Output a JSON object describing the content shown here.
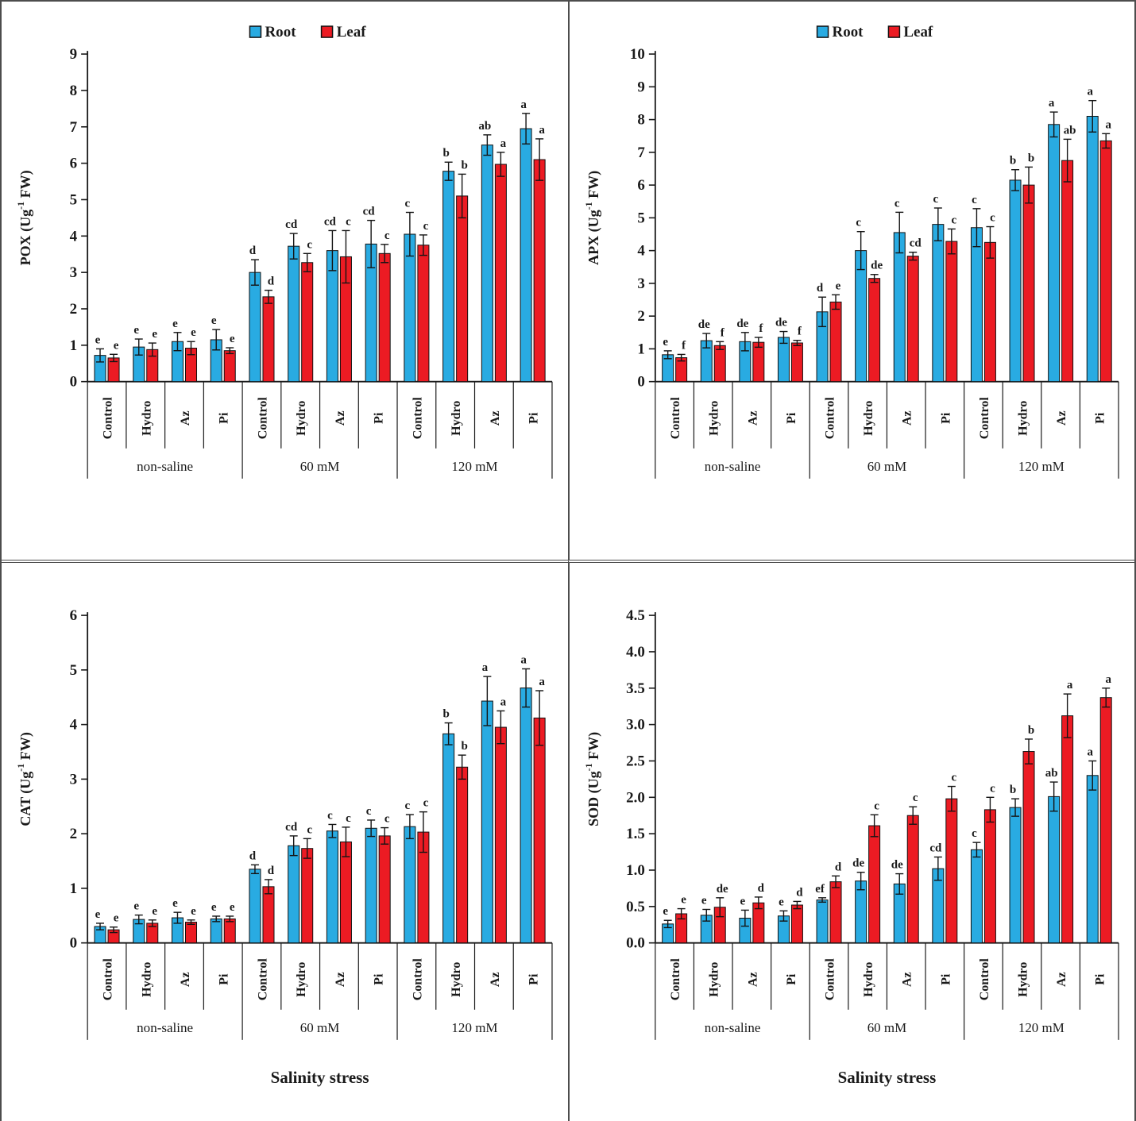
{
  "figure": {
    "description": "Four-panel bar chart figure of antioxidant enzyme activities under salinity stress",
    "border_color": "#4d4d4d"
  },
  "legend": {
    "items": [
      {
        "label": "Root",
        "color": "#29ABE2"
      },
      {
        "label": "Leaf",
        "color": "#EC1B23"
      }
    ]
  },
  "axis": {
    "treatments": [
      "Control",
      "Hydro",
      "Az",
      "Pi"
    ],
    "groups": [
      "non-saline",
      "60 mM",
      "120 mM"
    ],
    "xlabel": "Salinity stress"
  },
  "colors": {
    "root_bar": "#29ABE2",
    "leaf_bar": "#EC1B23",
    "bar_outline": "#111111",
    "error_bar": "#141414",
    "text": "#1a1a1a"
  },
  "chart_data": [
    {
      "type": "bar",
      "id": "pox",
      "position": "top-left",
      "ylabel": {
        "pre": "POX (Ug",
        "sup": "-1",
        "post": " FW)"
      },
      "ylim": [
        0,
        9
      ],
      "ystep": 1,
      "ydecimals": 0,
      "show_legend": true,
      "xlabel": "",
      "groups": [
        "non-saline",
        "60 mM",
        "120 mM"
      ],
      "treatments": [
        "Control",
        "Hydro",
        "Az",
        "Pi"
      ],
      "series": [
        {
          "name": "Root",
          "color": "#29ABE2",
          "values": [
            0.72,
            0.95,
            1.1,
            1.15,
            3.0,
            3.72,
            3.6,
            3.78,
            4.05,
            5.78,
            6.5,
            6.95
          ],
          "errors": [
            0.18,
            0.22,
            0.25,
            0.28,
            0.35,
            0.35,
            0.55,
            0.65,
            0.6,
            0.25,
            0.28,
            0.42
          ],
          "letters": [
            "e",
            "e",
            "e",
            "e",
            "d",
            "cd",
            "cd",
            "cd",
            "c",
            "b",
            "ab",
            "a"
          ]
        },
        {
          "name": "Leaf",
          "color": "#EC1B23",
          "values": [
            0.65,
            0.88,
            0.92,
            0.85,
            2.33,
            3.27,
            3.43,
            3.52,
            3.75,
            5.1,
            5.97,
            6.1
          ],
          "errors": [
            0.1,
            0.18,
            0.18,
            0.08,
            0.18,
            0.25,
            0.72,
            0.25,
            0.28,
            0.6,
            0.33,
            0.57
          ],
          "letters": [
            "e",
            "e",
            "e",
            "e",
            "d",
            "c",
            "c",
            "c",
            "c",
            "b",
            "a",
            "a"
          ]
        }
      ]
    },
    {
      "type": "bar",
      "id": "apx",
      "position": "top-right",
      "ylabel": {
        "pre": "APX (Ug",
        "sup": "-1",
        "post": " FW)"
      },
      "ylim": [
        0,
        10
      ],
      "ystep": 1,
      "ydecimals": 0,
      "show_legend": true,
      "xlabel": "",
      "groups": [
        "non-saline",
        "60 mM",
        "120 mM"
      ],
      "treatments": [
        "Control",
        "Hydro",
        "Az",
        "Pi"
      ],
      "series": [
        {
          "name": "Root",
          "color": "#29ABE2",
          "values": [
            0.82,
            1.25,
            1.22,
            1.35,
            2.13,
            4.0,
            4.55,
            4.8,
            4.7,
            6.15,
            7.85,
            8.1
          ],
          "errors": [
            0.12,
            0.22,
            0.28,
            0.18,
            0.45,
            0.58,
            0.62,
            0.5,
            0.58,
            0.32,
            0.38,
            0.48
          ],
          "letters": [
            "e",
            "de",
            "de",
            "de",
            "d",
            "c",
            "c",
            "c",
            "c",
            "b",
            "a",
            "a"
          ]
        },
        {
          "name": "Leaf",
          "color": "#EC1B23",
          "values": [
            0.73,
            1.1,
            1.2,
            1.18,
            2.43,
            3.15,
            3.83,
            4.28,
            4.25,
            6.0,
            6.75,
            7.35
          ],
          "errors": [
            0.1,
            0.12,
            0.15,
            0.08,
            0.22,
            0.12,
            0.12,
            0.38,
            0.48,
            0.55,
            0.65,
            0.22
          ],
          "letters": [
            "f",
            "f",
            "f",
            "f",
            "e",
            "de",
            "cd",
            "c",
            "c",
            "b",
            "ab",
            "a"
          ]
        }
      ]
    },
    {
      "type": "bar",
      "id": "cat",
      "position": "bottom-left",
      "ylabel": {
        "pre": "CAT (Ug",
        "sup": "-1",
        "post": " FW)"
      },
      "ylim": [
        0,
        6
      ],
      "ystep": 1,
      "ydecimals": 0,
      "show_legend": false,
      "xlabel": "Salinity stress",
      "groups": [
        "non-saline",
        "60 mM",
        "120 mM"
      ],
      "treatments": [
        "Control",
        "Hydro",
        "Az",
        "Pi"
      ],
      "series": [
        {
          "name": "Root",
          "color": "#29ABE2",
          "values": [
            0.3,
            0.43,
            0.46,
            0.44,
            1.35,
            1.78,
            2.05,
            2.1,
            2.13,
            3.83,
            4.43,
            4.67
          ],
          "errors": [
            0.06,
            0.08,
            0.1,
            0.05,
            0.08,
            0.18,
            0.12,
            0.15,
            0.22,
            0.2,
            0.45,
            0.35
          ],
          "letters": [
            "e",
            "e",
            "e",
            "e",
            "d",
            "cd",
            "c",
            "c",
            "c",
            "b",
            "a",
            "a"
          ]
        },
        {
          "name": "Leaf",
          "color": "#EC1B23",
          "values": [
            0.24,
            0.36,
            0.38,
            0.44,
            1.03,
            1.73,
            1.85,
            1.96,
            2.03,
            3.22,
            3.95,
            4.12
          ],
          "errors": [
            0.05,
            0.06,
            0.04,
            0.05,
            0.13,
            0.18,
            0.27,
            0.15,
            0.37,
            0.22,
            0.3,
            0.5
          ],
          "letters": [
            "e",
            "e",
            "e",
            "e",
            "d",
            "c",
            "c",
            "c",
            "c",
            "b",
            "a",
            "a"
          ]
        }
      ]
    },
    {
      "type": "bar",
      "id": "sod",
      "position": "bottom-right",
      "ylabel": {
        "pre": "SOD (Ug",
        "sup": "-1",
        "post": " FW)"
      },
      "ylim": [
        0,
        4.5
      ],
      "ystep": 0.5,
      "ydecimals": 1,
      "show_legend": false,
      "xlabel": "Salinity stress",
      "groups": [
        "non-saline",
        "60 mM",
        "120 mM"
      ],
      "treatments": [
        "Control",
        "Hydro",
        "Az",
        "Pi"
      ],
      "series": [
        {
          "name": "Root",
          "color": "#29ABE2",
          "values": [
            0.26,
            0.38,
            0.34,
            0.37,
            0.59,
            0.85,
            0.81,
            1.02,
            1.28,
            1.86,
            2.01,
            2.3
          ],
          "errors": [
            0.05,
            0.08,
            0.11,
            0.07,
            0.03,
            0.12,
            0.14,
            0.16,
            0.1,
            0.12,
            0.2,
            0.2
          ],
          "letters": [
            "e",
            "e",
            "e",
            "e",
            "ef",
            "de",
            "de",
            "cd",
            "c",
            "b",
            "ab",
            "a"
          ]
        },
        {
          "name": "Leaf",
          "color": "#EC1B23",
          "values": [
            0.4,
            0.49,
            0.55,
            0.52,
            0.84,
            1.61,
            1.75,
            1.98,
            1.83,
            2.63,
            3.12,
            3.37
          ],
          "errors": [
            0.07,
            0.13,
            0.08,
            0.05,
            0.08,
            0.15,
            0.12,
            0.17,
            0.17,
            0.17,
            0.3,
            0.13
          ],
          "letters": [
            "e",
            "de",
            "d",
            "d",
            "d",
            "c",
            "c",
            "c",
            "c",
            "b",
            "a",
            "a"
          ]
        }
      ]
    }
  ]
}
